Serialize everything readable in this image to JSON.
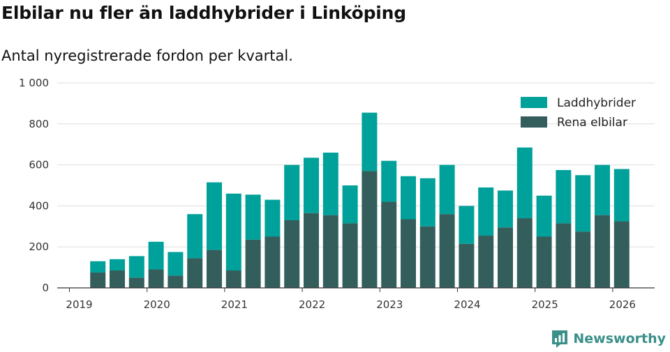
{
  "header": {
    "title": "Elbilar nu fler än laddhybrider i Linköping",
    "subtitle": "Antal nyregistrerade fordon per kvartal."
  },
  "brand": {
    "name": "Newsworthy",
    "icon": "newsworthy-logo-icon",
    "color": "#3a8f89"
  },
  "colors": {
    "laddhybrider": "#00a19a",
    "rena_elbilar": "#335e5c",
    "grid": "#dddddd",
    "axis": "#333333"
  },
  "chart_data": {
    "type": "bar",
    "stacked": true,
    "categories": [
      "2019 Q2",
      "2019 Q3",
      "2019 Q4",
      "2020 Q1",
      "2020 Q2",
      "2020 Q3",
      "2020 Q4",
      "2021 Q1",
      "2021 Q2",
      "2021 Q3",
      "2021 Q4",
      "2022 Q1",
      "2022 Q2",
      "2022 Q3",
      "2022 Q4",
      "2023 Q1",
      "2023 Q2",
      "2023 Q3",
      "2023 Q4",
      "2024 Q1",
      "2024 Q2",
      "2024 Q3",
      "2024 Q4",
      "2025 Q1",
      "2025 Q2",
      "2025 Q3",
      "2025 Q4",
      "2026 Q1"
    ],
    "series": [
      {
        "name": "Rena elbilar",
        "values": [
          75,
          85,
          50,
          90,
          60,
          145,
          185,
          85,
          235,
          250,
          330,
          365,
          355,
          315,
          570,
          420,
          335,
          300,
          360,
          215,
          255,
          295,
          340,
          250,
          315,
          275,
          355,
          325
        ]
      },
      {
        "name": "Laddhybrider",
        "values": [
          55,
          55,
          105,
          135,
          115,
          215,
          330,
          375,
          220,
          180,
          270,
          270,
          305,
          185,
          285,
          200,
          210,
          235,
          240,
          185,
          235,
          180,
          345,
          200,
          260,
          275,
          245,
          255
        ]
      }
    ],
    "x_ticks": [
      "2019",
      "2020",
      "2021",
      "2022",
      "2023",
      "2024",
      "2025",
      "2026"
    ],
    "y_ticks": [
      "0",
      "200",
      "400",
      "600",
      "800",
      "1 000"
    ],
    "ylim": [
      0,
      1000
    ],
    "grid": true,
    "legend_placement": "top-right"
  }
}
